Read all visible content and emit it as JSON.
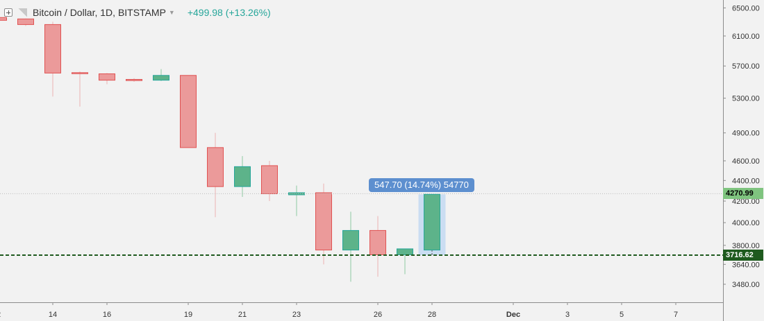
{
  "header": {
    "symbol": "Bitcoin / Dollar, 1D, BITSTAMP",
    "change": "+499.98 (+13.26%)"
  },
  "measure_label": "547.70 (14.74%) 54770",
  "price_labels": {
    "last": "4270.99",
    "support": "3716.62",
    "last_bg": "#7fc47f",
    "support_bg": "#1e5a1e"
  },
  "colors": {
    "up": "#26a69a",
    "up_fill": "#5db38a",
    "down": "#e05252",
    "down_fill": "#eb9a9a",
    "support_line": "#1e5a1e",
    "measure_box": "#bcd6f2"
  },
  "chart_data": {
    "type": "candlestick",
    "scale": "log",
    "ylim": [
      3380,
      6620
    ],
    "y_ticks": [
      "3480.00",
      "3640.00",
      "3800.00",
      "4000.00",
      "4200.00",
      "4400.00",
      "4600.00",
      "4900.00",
      "5300.00",
      "5700.00",
      "6100.00",
      "6500.00"
    ],
    "x_ticks": [
      {
        "label": "2",
        "day": 0
      },
      {
        "label": "14",
        "day": 2
      },
      {
        "label": "16",
        "day": 4
      },
      {
        "label": "19",
        "day": 7
      },
      {
        "label": "21",
        "day": 9
      },
      {
        "label": "23",
        "day": 11
      },
      {
        "label": "26",
        "day": 14
      },
      {
        "label": "28",
        "day": 16
      },
      {
        "label": "Dec",
        "day": 19
      },
      {
        "label": "3",
        "day": 21
      },
      {
        "label": "5",
        "day": 23
      },
      {
        "label": "7",
        "day": 25
      }
    ],
    "candles": [
      {
        "day": 0,
        "open": 6360,
        "high": 6380,
        "low": 6300,
        "close": 6320
      },
      {
        "day": 1,
        "open": 6340,
        "high": 6345,
        "low": 6240,
        "close": 6260
      },
      {
        "day": 2,
        "open": 6260,
        "high": 6300,
        "low": 5320,
        "close": 5610
      },
      {
        "day": 3,
        "open": 5615,
        "high": 5630,
        "low": 5200,
        "close": 5605
      },
      {
        "day": 4,
        "open": 5600,
        "high": 5610,
        "low": 5470,
        "close": 5520
      },
      {
        "day": 5,
        "open": 5530,
        "high": 5545,
        "low": 5500,
        "close": 5515
      },
      {
        "day": 6,
        "open": 5520,
        "high": 5660,
        "low": 5510,
        "close": 5580
      },
      {
        "day": 7,
        "open": 5580,
        "high": 5580,
        "low": 4740,
        "close": 4740
      },
      {
        "day": 8,
        "open": 4740,
        "high": 4900,
        "low": 4050,
        "close": 4340
      },
      {
        "day": 9,
        "open": 4340,
        "high": 4650,
        "low": 4240,
        "close": 4540
      },
      {
        "day": 10,
        "open": 4550,
        "high": 4600,
        "low": 4200,
        "close": 4270
      },
      {
        "day": 11,
        "open": 4260,
        "high": 4350,
        "low": 4060,
        "close": 4280
      },
      {
        "day": 12,
        "open": 4280,
        "high": 4370,
        "low": 3640,
        "close": 3760
      },
      {
        "day": 13,
        "open": 3760,
        "high": 4100,
        "low": 3500,
        "close": 3930
      },
      {
        "day": 14,
        "open": 3930,
        "high": 4060,
        "low": 3540,
        "close": 3720
      },
      {
        "day": 15,
        "open": 3720,
        "high": 3770,
        "low": 3560,
        "close": 3770
      },
      {
        "day": 16,
        "open": 3760,
        "high": 4265,
        "low": 3760,
        "close": 4265
      }
    ],
    "last_price": 4270.99,
    "support_level": 3716.62,
    "measure": {
      "from_day": 15.5,
      "to_day": 16.5,
      "low": 3716.62,
      "high": 4264.32
    }
  }
}
